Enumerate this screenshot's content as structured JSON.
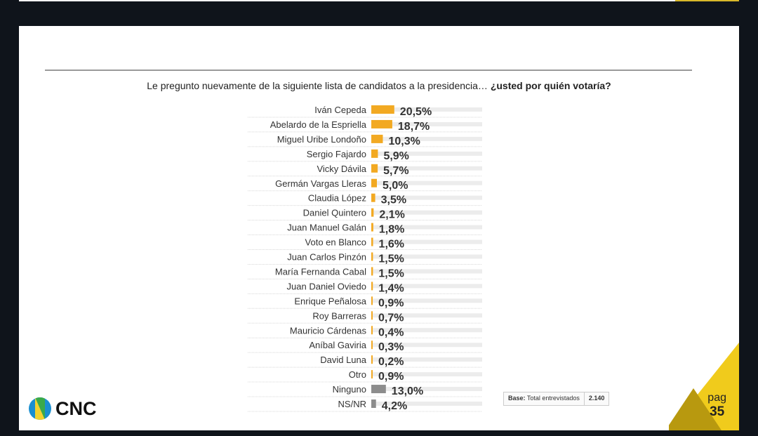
{
  "question": {
    "text": "Le pregunto nuevamente de la siguiente lista de candidatos a la presidencia…",
    "emphasis": "¿usted por quién votaría?"
  },
  "chart_data": {
    "type": "bar",
    "orientation": "horizontal",
    "unit": "%",
    "categories": [
      "Iván Cepeda",
      "Abelardo de la Espriella",
      "Miguel Uribe Londoño",
      "Sergio Fajardo",
      "Vicky Dávila",
      "Germán Vargas Lleras",
      "Claudia López",
      "Daniel Quintero",
      "Juan Manuel Galán",
      "Voto en Blanco",
      "Juan Carlos Pinzón",
      "María Fernanda Cabal",
      "Juan Daniel Oviedo",
      "Enrique Peñalosa",
      "Roy Barreras",
      "Mauricio Cárdenas",
      "Aníbal Gaviria",
      "David Luna",
      "Otro",
      "Ninguno",
      "NS/NR"
    ],
    "values": [
      20.5,
      18.7,
      10.3,
      5.9,
      5.7,
      5.0,
      3.5,
      2.1,
      1.8,
      1.6,
      1.5,
      1.5,
      1.4,
      0.9,
      0.7,
      0.4,
      0.3,
      0.2,
      0.9,
      13.0,
      4.2
    ],
    "labels": [
      "20,5%",
      "18,7%",
      "10,3%",
      "5,9%",
      "5,7%",
      "5,0%",
      "3,5%",
      "2,1%",
      "1,8%",
      "1,6%",
      "1,5%",
      "1,5%",
      "1,4%",
      "0,9%",
      "0,7%",
      "0,4%",
      "0,3%",
      "0,2%",
      "0,9%",
      "13,0%",
      "4,2%"
    ],
    "colors": {
      "candidate": "#f2a922",
      "other": "#8c8c8c",
      "track": "#ececec"
    }
  },
  "base": {
    "label": "Base:",
    "text": "Total entrevistados",
    "value": "2.140"
  },
  "logo": {
    "text": "CNC"
  },
  "page": {
    "label": "pag",
    "number": "35"
  }
}
